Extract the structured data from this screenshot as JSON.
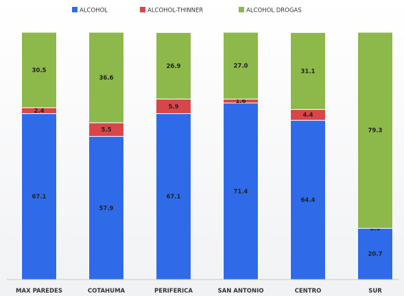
{
  "chart_data": {
    "type": "bar",
    "stacked": true,
    "categories": [
      "MAX PAREDES",
      "COTAHUMA",
      "PERIFERICA",
      "SAN ANTONIO",
      "CENTRO",
      "SUR"
    ],
    "series": [
      {
        "name": "ALCOHOL",
        "color": "#2f6be8",
        "values": [
          67.1,
          57.9,
          67.1,
          71.4,
          64.4,
          20.7
        ]
      },
      {
        "name": "ALCOHOL-THINNER",
        "color": "#d8464a",
        "values": [
          2.4,
          5.5,
          5.9,
          1.6,
          4.4,
          0.0
        ]
      },
      {
        "name": "ALCOHOL DROGAS",
        "color": "#8db84a",
        "values": [
          30.5,
          36.6,
          26.9,
          27.0,
          31.1,
          79.3
        ]
      }
    ],
    "ylim": [
      0,
      100
    ],
    "legend_position": "top",
    "grid": false,
    "title": "",
    "xlabel": "",
    "ylabel": ""
  }
}
